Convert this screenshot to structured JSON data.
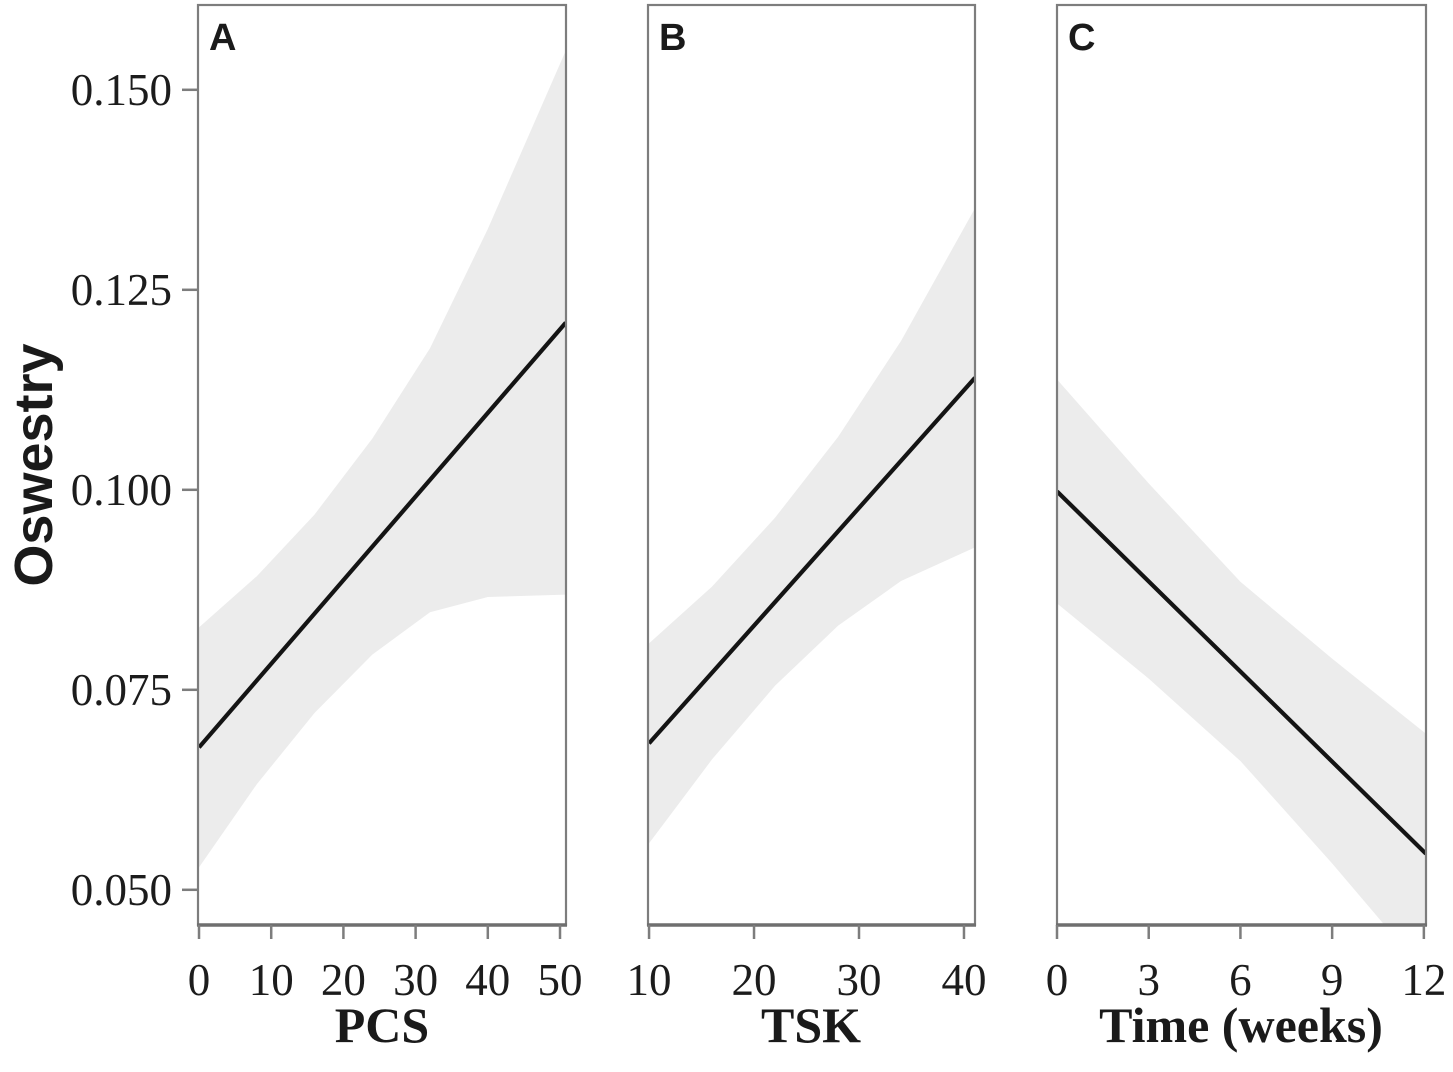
{
  "chart_data": {
    "type": "line",
    "ylabel": "Oswestry",
    "ylim": [
      0.0456,
      0.1606
    ],
    "y_ticks": {
      "values": [
        0.15,
        0.125,
        0.1,
        0.075,
        0.05
      ],
      "labels": [
        "0.150",
        "0.125",
        "0.100",
        "0.075",
        "0.050"
      ]
    },
    "legend": "none",
    "grid": "off",
    "panels": [
      {
        "label": "A",
        "xlabel": "PCS",
        "xlim": [
          -0.14,
          50.83
        ],
        "x_ticks": {
          "values": [
            0,
            10,
            20,
            30,
            40,
            50
          ],
          "labels": [
            "0",
            "10",
            "20",
            "30",
            "40",
            "50"
          ]
        },
        "trend_line": {
          "x": [
            0,
            50.8
          ],
          "y": [
            0.0678,
            0.1209
          ]
        },
        "ci_band": {
          "x": [
            0,
            8,
            16,
            24,
            32,
            40,
            50.8
          ],
          "upper": [
            0.0828,
            0.0892,
            0.0969,
            0.1064,
            0.1177,
            0.1326,
            0.1549
          ],
          "lower": [
            0.0528,
            0.0632,
            0.0721,
            0.0794,
            0.0847,
            0.0866,
            0.0869
          ]
        }
      },
      {
        "label": "B",
        "xlabel": "TSK",
        "xlim": [
          9.9,
          41.05
        ],
        "x_ticks": {
          "values": [
            10,
            20,
            30,
            40
          ],
          "labels": [
            "10",
            "20",
            "30",
            "40"
          ]
        },
        "trend_line": {
          "x": [
            10,
            41.05
          ],
          "y": [
            0.0683,
            0.114
          ]
        },
        "ci_band": {
          "x": [
            10,
            16,
            22,
            28,
            34,
            41.05
          ],
          "upper": [
            0.0808,
            0.0879,
            0.0965,
            0.1066,
            0.1186,
            0.1352
          ],
          "lower": [
            0.0558,
            0.0663,
            0.0755,
            0.083,
            0.0886,
            0.0928
          ]
        }
      },
      {
        "label": "C",
        "xlabel": "Time (weeks)",
        "xlim": [
          0,
          12.07
        ],
        "x_ticks": {
          "values": [
            0,
            3,
            6,
            9,
            12
          ],
          "labels": [
            "0",
            "3",
            "6",
            "9",
            "12"
          ]
        },
        "trend_line": {
          "x": [
            0,
            12.07
          ],
          "y": [
            0.0998,
            0.0545
          ]
        },
        "ci_band": {
          "x": [
            0,
            3,
            6,
            9,
            12.07
          ],
          "upper": [
            0.1138,
            0.1008,
            0.0885,
            0.0789,
            0.0695
          ],
          "lower": [
            0.0858,
            0.0764,
            0.0661,
            0.0533,
            0.0395
          ]
        }
      }
    ],
    "colors": {
      "trend_line": "#141414",
      "ci_band": "#ececec",
      "axis": "#7d7d7d",
      "axis_bottom": "#6f6f6f",
      "text": "#1c1c1c",
      "background": "#ffffff"
    }
  }
}
